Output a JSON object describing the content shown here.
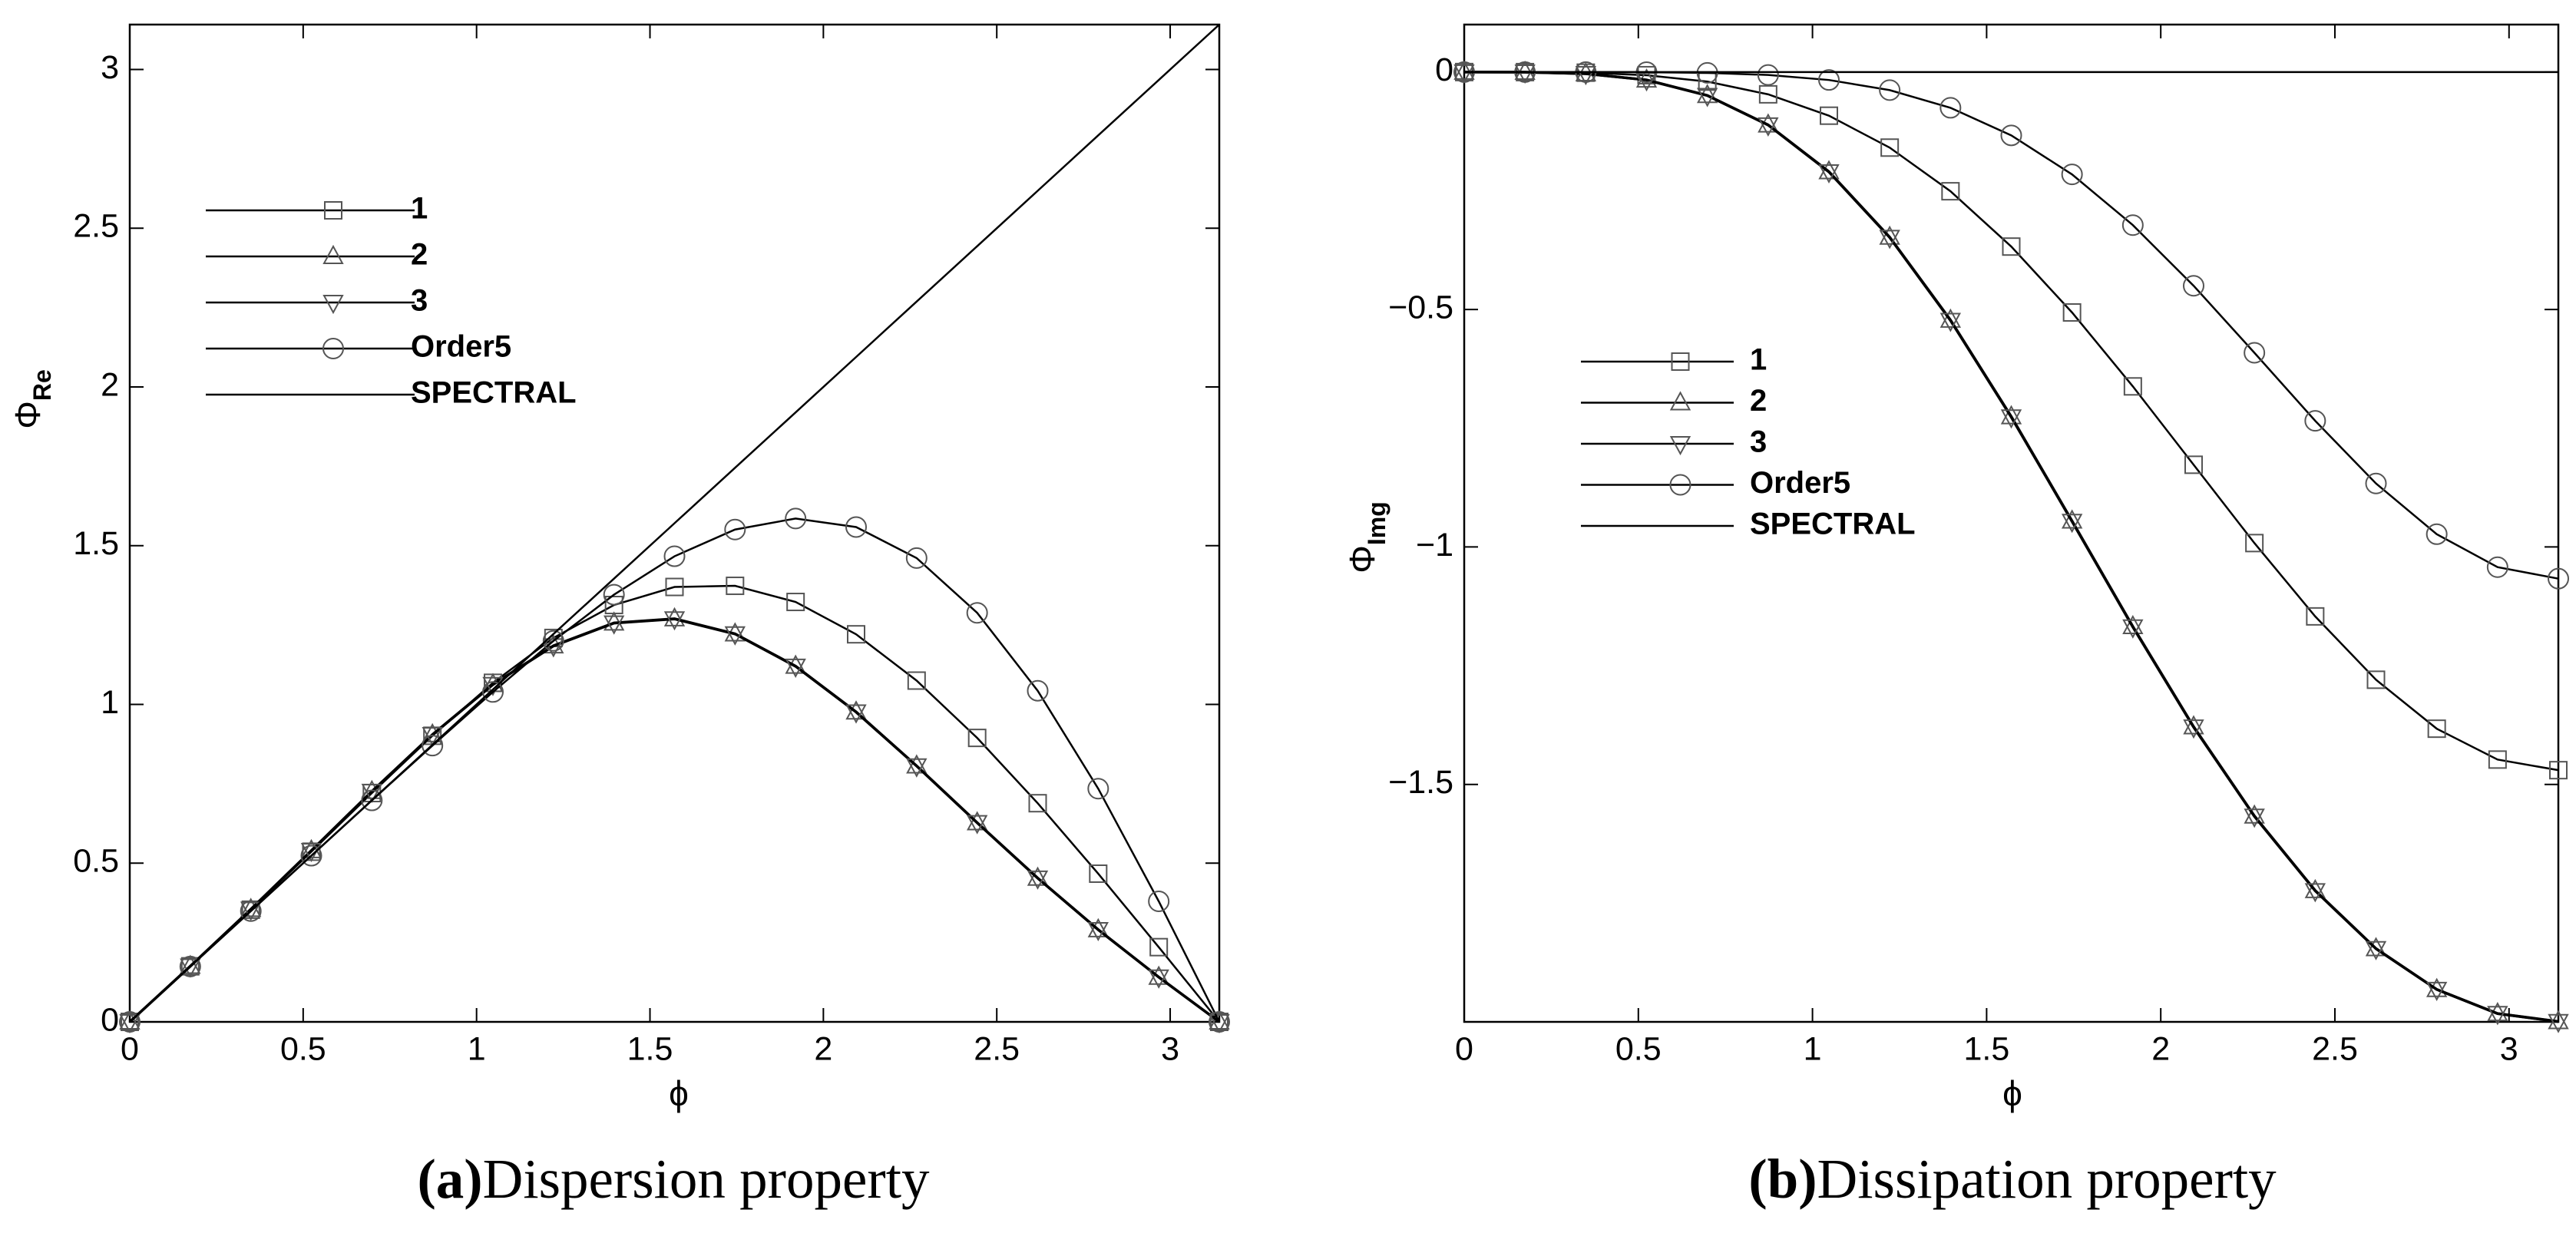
{
  "chart_data": [
    {
      "type": "line",
      "caption_label": "(a)",
      "caption_text": "Dispersion property",
      "ylabel": "Φ",
      "ylabel_sub": "Re",
      "xlabel": "ϕ",
      "xlim": [
        0,
        3.1416
      ],
      "ylim": [
        0,
        3.1416
      ],
      "xticks": [
        0,
        0.5,
        1,
        1.5,
        2,
        2.5,
        3
      ],
      "yticks": [
        0,
        0.5,
        1,
        1.5,
        2,
        2.5,
        3
      ],
      "legend_loc": "upper left",
      "x": [
        0,
        0.1745,
        0.3491,
        0.5236,
        0.6981,
        0.8727,
        1.0472,
        1.2217,
        1.3963,
        1.5708,
        1.7453,
        1.9199,
        2.0944,
        2.2689,
        2.4435,
        2.618,
        2.7925,
        2.9671,
        3.1416
      ],
      "series": [
        {
          "name": "1",
          "color": "#000000",
          "marker": "square",
          "values": [
            0,
            0.175,
            0.3534,
            0.536,
            0.7207,
            0.9012,
            1.0681,
            1.2094,
            1.3132,
            1.37,
            1.3736,
            1.3228,
            1.2209,
            1.075,
            0.8945,
            0.6888,
            0.4668,
            0.2354,
            0
          ]
        },
        {
          "name": "2",
          "color": "#000000",
          "marker": "triangle-up",
          "values": [
            0,
            0.1752,
            0.3547,
            0.5396,
            0.726,
            0.9049,
            1.063,
            1.1849,
            1.2568,
            1.27,
            1.2226,
            1.1207,
            0.9764,
            0.8065,
            0.6276,
            0.453,
            0.2905,
            0.141,
            0
          ]
        },
        {
          "name": "3",
          "color": "#000000",
          "marker": "triangle-down",
          "values": [
            0,
            0.1752,
            0.3546,
            0.5394,
            0.7257,
            0.9045,
            1.0624,
            1.1842,
            1.256,
            1.2692,
            1.2219,
            1.12,
            0.9758,
            0.806,
            0.6272,
            0.4527,
            0.2903,
            0.1409,
            0
          ]
        },
        {
          "name": "Order5",
          "color": "#000000",
          "marker": "circle",
          "values": [
            0,
            0.1745,
            0.349,
            0.5235,
            0.6976,
            0.8702,
            1.0392,
            1.2001,
            1.3457,
            1.4667,
            1.5509,
            1.5857,
            1.5588,
            1.4611,
            1.2885,
            1.0431,
            0.7347,
            0.3797,
            0
          ]
        },
        {
          "name": "SPECTRAL",
          "color": "#000000",
          "marker": "none",
          "values": [
            0,
            0.1745,
            0.3491,
            0.5236,
            0.6981,
            0.8727,
            1.0472,
            1.2217,
            1.3963,
            1.5708,
            1.7453,
            1.9199,
            2.0944,
            2.2689,
            2.4435,
            2.618,
            2.7925,
            2.9671,
            3.1416
          ]
        }
      ]
    },
    {
      "type": "line",
      "caption_label": "(b)",
      "caption_text": "Dissipation property",
      "ylabel": "Φ",
      "ylabel_sub": "Img",
      "xlabel": "ϕ",
      "xlim": [
        0,
        3.1416
      ],
      "ylim": [
        -2,
        0.1
      ],
      "xticks": [
        0,
        0.5,
        1,
        1.5,
        2,
        2.5,
        3
      ],
      "yticks": [
        0,
        {
          "value": -0.5,
          "label": "−0.5"
        },
        {
          "value": -1,
          "label": "−1"
        },
        {
          "value": -1.5,
          "label": "−1.5"
        }
      ],
      "legend_loc": "center left",
      "x": [
        0,
        0.1745,
        0.3491,
        0.5236,
        0.6981,
        0.8727,
        1.0472,
        1.2217,
        1.3963,
        1.5708,
        1.7453,
        1.9199,
        2.0944,
        2.2689,
        2.4435,
        2.618,
        2.7925,
        2.9671,
        3.1416
      ],
      "series": [
        {
          "name": "1",
          "color": "#000000",
          "marker": "square",
          "values": [
            0,
            -0.0001,
            -0.0013,
            -0.0066,
            -0.0201,
            -0.0469,
            -0.0919,
            -0.1591,
            -0.251,
            -0.3675,
            -0.5062,
            -0.6619,
            -0.8269,
            -0.9918,
            -1.1462,
            -1.2796,
            -1.3827,
            -1.4477,
            -1.47
          ]
        },
        {
          "name": "2",
          "color": "#000000",
          "marker": "triangle-up",
          "values": [
            0,
            -0.0002,
            -0.0034,
            -0.0165,
            -0.0492,
            -0.1111,
            -0.2096,
            -0.3475,
            -0.5221,
            -0.7254,
            -0.9451,
            -1.1675,
            -1.3784,
            -1.5663,
            -1.7234,
            -1.8456,
            -1.9316,
            -1.9824,
            -1.9992
          ]
        },
        {
          "name": "3",
          "color": "#000000",
          "marker": "triangle-down",
          "values": [
            0,
            -0.0002,
            -0.0035,
            -0.0167,
            -0.0495,
            -0.1116,
            -0.2103,
            -0.3484,
            -0.5232,
            -0.7266,
            -0.9463,
            -1.1687,
            -1.3795,
            -1.5672,
            -1.7241,
            -1.8461,
            -1.9319,
            -1.9826,
            -1.9995
          ]
        },
        {
          "name": "Order5",
          "color": "#000000",
          "marker": "circle",
          "values": [
            0,
            0,
            0,
            -0.0003,
            -0.0017,
            -0.0061,
            -0.0167,
            -0.038,
            -0.0753,
            -0.1333,
            -0.2155,
            -0.3223,
            -0.45,
            -0.5911,
            -0.7344,
            -0.8663,
            -0.9731,
            -1.0425,
            -1.0667
          ]
        },
        {
          "name": "SPECTRAL",
          "color": "#000000",
          "marker": "none",
          "values": [
            0,
            0,
            0,
            0,
            0,
            0,
            0,
            0,
            0,
            0,
            0,
            0,
            0,
            0,
            0,
            0,
            0,
            0,
            0
          ]
        }
      ]
    }
  ]
}
